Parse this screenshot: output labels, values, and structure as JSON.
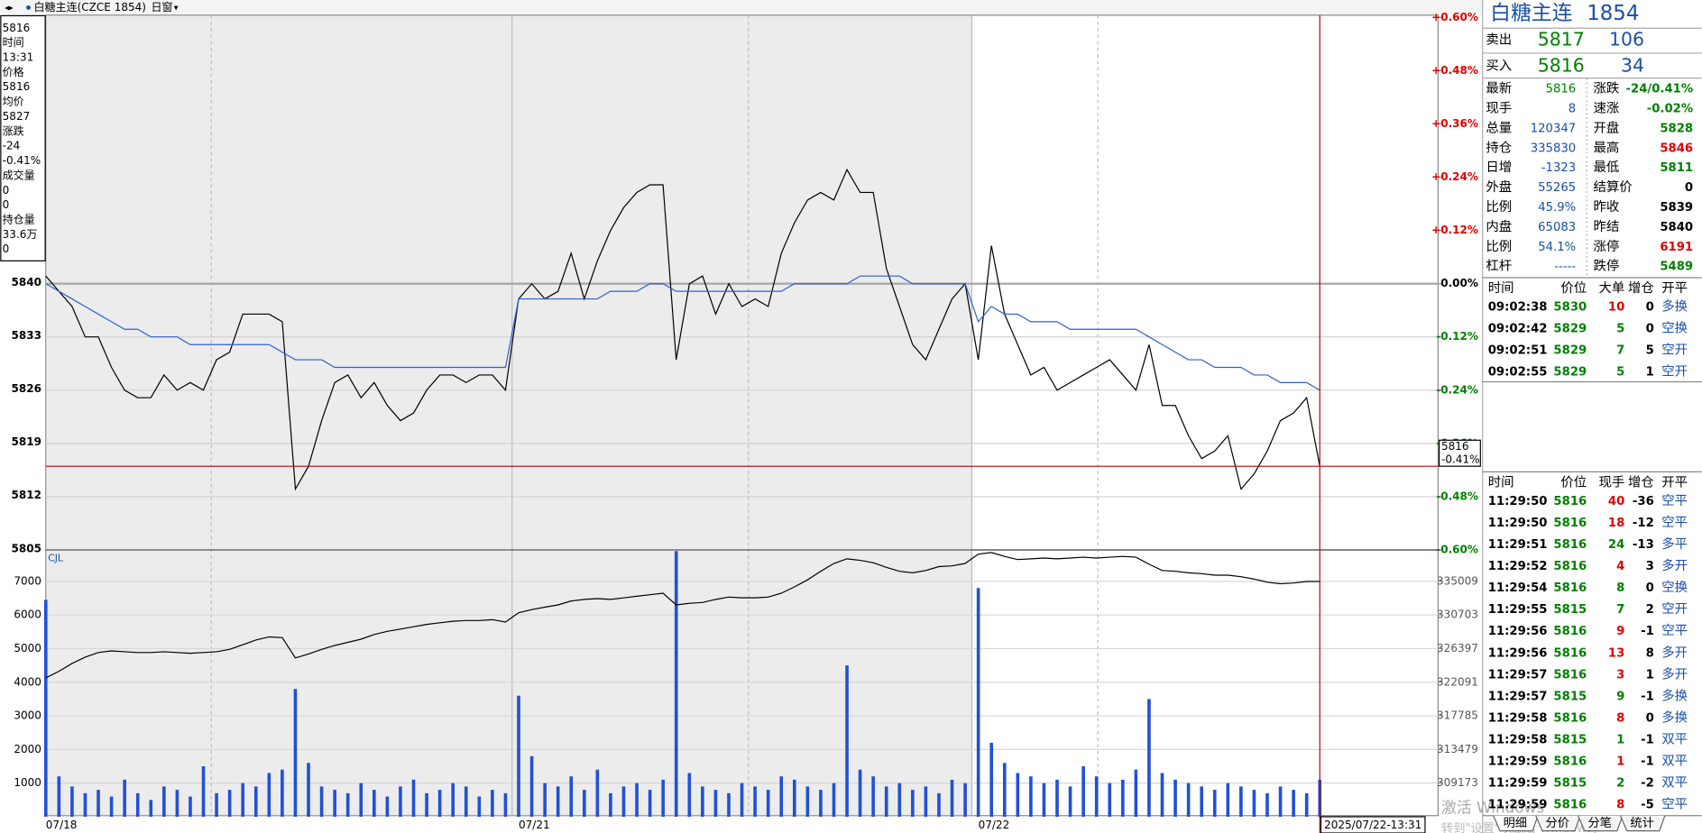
{
  "header": {
    "symbol": "白糖主连(CZCE 1854)",
    "window": "日窗"
  },
  "info_box": [
    "5816",
    "时间",
    "13:31",
    "价格",
    "5816",
    "均价",
    "5827",
    "涨跌",
    "-24",
    "-0.41%",
    "成交量",
    "0",
    "0",
    "持仓量",
    "33.6万",
    "0"
  ],
  "cursor": {
    "value": 5816,
    "label": "5816",
    "change": "-0.41%",
    "time": "2025/07/22-13:31"
  },
  "chart_data": [
    {
      "type": "line",
      "categories": [
        "07/18",
        null,
        null,
        null,
        null,
        null,
        null,
        null,
        null,
        null,
        null,
        null,
        null,
        null,
        null,
        null,
        null,
        null,
        null,
        null,
        null,
        null,
        null,
        null,
        null,
        null,
        null,
        null,
        null,
        null,
        null,
        null,
        null,
        null,
        null,
        null,
        "07/21",
        null,
        null,
        null,
        null,
        null,
        null,
        null,
        null,
        null,
        null,
        null,
        null,
        null,
        null,
        null,
        null,
        null,
        null,
        null,
        null,
        null,
        null,
        null,
        null,
        null,
        null,
        null,
        null,
        null,
        null,
        null,
        null,
        null,
        null,
        "07/22",
        null,
        null,
        null,
        null,
        null,
        null,
        null,
        null,
        null,
        null,
        null,
        null,
        null,
        null,
        null,
        null,
        null,
        null,
        null,
        null,
        null,
        null,
        null,
        null,
        null,
        null
      ],
      "series": [
        {
          "color": "#000000",
          "values": [
            5841,
            5839,
            5837,
            5833,
            5833,
            5829,
            5826,
            5825,
            5825,
            5828,
            5826,
            5827,
            5826,
            5830,
            5831,
            5836,
            5836,
            5836,
            5835,
            5813,
            5816,
            5822,
            5827,
            5828,
            5825,
            5827,
            5824,
            5822,
            5823,
            5826,
            5828,
            5828,
            5827,
            5828,
            5828,
            5826,
            5838,
            5840,
            5838,
            5839,
            5844,
            5838,
            5843,
            5847,
            5850,
            5852,
            5853,
            5853,
            5830,
            5840,
            5841,
            5836,
            5840,
            5837,
            5838,
            5837,
            5844,
            5848,
            5851,
            5852,
            5851,
            5855,
            5852,
            5852,
            5842,
            5837,
            5832,
            5830,
            5834,
            5838,
            5840,
            5830,
            5845,
            5836,
            5832,
            5828,
            5829,
            5826,
            5827,
            5828,
            5829,
            5830,
            5828,
            5826,
            5832,
            5824,
            5824,
            5820,
            5817,
            5818,
            5820,
            5813,
            5815,
            5818,
            5822,
            5823,
            5825,
            5816
          ]
        },
        {
          "color": "#2f5fd0",
          "values": [
            5840,
            5839,
            5838,
            5837,
            5836,
            5835,
            5834,
            5834,
            5833,
            5833,
            5833,
            5832,
            5832,
            5832,
            5832,
            5832,
            5832,
            5832,
            5831,
            5830,
            5830,
            5830,
            5829,
            5829,
            5829,
            5829,
            5829,
            5829,
            5829,
            5829,
            5829,
            5829,
            5829,
            5829,
            5829,
            5829,
            5838,
            5838,
            5838,
            5838,
            5838,
            5838,
            5838,
            5839,
            5839,
            5839,
            5840,
            5840,
            5839,
            5839,
            5839,
            5839,
            5839,
            5839,
            5839,
            5839,
            5839,
            5840,
            5840,
            5840,
            5840,
            5840,
            5841,
            5841,
            5841,
            5841,
            5840,
            5840,
            5840,
            5840,
            5840,
            5835,
            5837,
            5836,
            5836,
            5835,
            5835,
            5835,
            5834,
            5834,
            5834,
            5834,
            5834,
            5834,
            5833,
            5832,
            5831,
            5830,
            5830,
            5829,
            5829,
            5829,
            5828,
            5828,
            5827,
            5827,
            5827,
            5826
          ]
        }
      ],
      "ylim": [
        5805,
        5875.3
      ],
      "yticks": [
        5805,
        5812,
        5819,
        5826,
        5833,
        5840
      ],
      "y2lim": [
        -0.6,
        0.605
      ],
      "y2ticks": [
        {
          "value": 0.6,
          "label": "+0.60%"
        },
        {
          "value": 0.48,
          "label": "+0.48%"
        },
        {
          "value": 0.36,
          "label": "+0.36%"
        },
        {
          "value": 0.24,
          "label": "+0.24%"
        },
        {
          "value": 0.12,
          "label": "+0.12%"
        },
        {
          "value": 0,
          "label": "0.00%"
        },
        {
          "value": -0.12,
          "label": "-0.12%"
        },
        {
          "value": -0.24,
          "label": "-0.24%"
        },
        {
          "value": -0.36,
          "label": "-0.36%"
        },
        {
          "value": -0.48,
          "label": "-0.48%"
        },
        {
          "value": -0.6,
          "label": "-0.60%"
        }
      ],
      "grid": true
    },
    {
      "type": "bar",
      "label": "CJL",
      "series": [
        {
          "color": "#2050d8",
          "values": [
            6450,
            1200,
            900,
            700,
            800,
            600,
            1100,
            700,
            500,
            900,
            800,
            600,
            1500,
            700,
            800,
            1000,
            900,
            1300,
            1400,
            3800,
            1600,
            900,
            800,
            700,
            1000,
            800,
            600,
            900,
            1100,
            700,
            800,
            1000,
            900,
            600,
            800,
            700,
            3600,
            1800,
            1000,
            900,
            1200,
            800,
            1400,
            700,
            900,
            1000,
            800,
            1100,
            7900,
            1300,
            900,
            800,
            700,
            1000,
            900,
            800,
            1200,
            1100,
            900,
            800,
            1000,
            4500,
            1400,
            1200,
            900,
            1000,
            800,
            900,
            700,
            1100,
            1000,
            6800,
            2200,
            1600,
            1300,
            1200,
            1000,
            1100,
            900,
            1500,
            1200,
            1000,
            1100,
            1400,
            3500,
            1300,
            1100,
            1000,
            900,
            800,
            1000,
            900,
            800,
            700,
            900,
            800,
            700,
            1100
          ]
        },
        {
          "color": "#000000",
          "axis": "y2",
          "values": [
            322650,
            323500,
            324500,
            325300,
            325900,
            326100,
            326000,
            325900,
            325900,
            326000,
            325900,
            325800,
            325900,
            326000,
            326300,
            326900,
            327500,
            327900,
            327800,
            325200,
            325700,
            326300,
            326800,
            327200,
            327600,
            328200,
            328600,
            328900,
            329200,
            329500,
            329700,
            329900,
            330000,
            330000,
            330100,
            329800,
            331000,
            331400,
            331700,
            332000,
            332500,
            332700,
            332800,
            332700,
            332900,
            333100,
            333300,
            333500,
            332000,
            332200,
            332300,
            332700,
            333000,
            332900,
            332900,
            333000,
            333500,
            334300,
            335200,
            336300,
            337300,
            337900,
            337700,
            337400,
            336800,
            336300,
            336100,
            336400,
            336900,
            337000,
            337300,
            338500,
            338700,
            338200,
            337800,
            337900,
            338000,
            337900,
            338000,
            338100,
            338000,
            338100,
            338200,
            338100,
            337200,
            336400,
            336300,
            336100,
            336000,
            335800,
            335800,
            335600,
            335300,
            334900,
            334700,
            334800,
            335000,
            335000
          ]
        }
      ],
      "ylim": [
        0,
        7935
      ],
      "yticks": [
        1000,
        2000,
        3000,
        4000,
        5000,
        6000,
        7000
      ],
      "y2lim": [
        304867,
        339037
      ],
      "y2ticks": [
        309173,
        313479,
        317785,
        322091,
        326397,
        330703,
        335009
      ],
      "grid": true
    }
  ],
  "quote": {
    "name": "白糖主连",
    "code": "1854",
    "book": [
      {
        "label": "卖出",
        "price": "5817",
        "volume": "106"
      },
      {
        "label": "买入",
        "price": "5816",
        "volume": "34"
      }
    ],
    "stats": [
      [
        {
          "label": "最新",
          "value": "5816",
          "color": "#008000"
        },
        {
          "label": "涨跌",
          "value": "-24/0.41%",
          "color": "#008000"
        }
      ],
      [
        {
          "label": "现手",
          "value": "8",
          "color": "#1a4fa8"
        },
        {
          "label": "速涨",
          "value": "-0.02%",
          "color": "#008000"
        }
      ],
      [
        {
          "label": "总量",
          "value": "120347",
          "color": "#1a4fa8"
        },
        {
          "label": "开盘",
          "value": "5828",
          "color": "#008000"
        }
      ],
      [
        {
          "label": "持仓",
          "value": "335830",
          "color": "#1a4fa8"
        },
        {
          "label": "最高",
          "value": "5846",
          "color": "#e00000"
        }
      ],
      [
        {
          "label": "日增",
          "value": "-1323",
          "color": "#1a4fa8"
        },
        {
          "label": "最低",
          "value": "5811",
          "color": "#008000"
        }
      ],
      [
        {
          "label": "外盘",
          "value": "55265",
          "color": "#1a4fa8"
        },
        {
          "label": "结算价",
          "value": "0",
          "color": "#000000"
        }
      ],
      [
        {
          "label": "比例",
          "value": "45.9%",
          "color": "#1a4fa8"
        },
        {
          "label": "昨收",
          "value": "5839",
          "color": "#000000"
        }
      ],
      [
        {
          "label": "内盘",
          "value": "65083",
          "color": "#1a4fa8"
        },
        {
          "label": "昨结",
          "value": "5840",
          "color": "#000000"
        }
      ],
      [
        {
          "label": "比例",
          "value": "54.1%",
          "color": "#1a4fa8"
        },
        {
          "label": "涨停",
          "value": "6191",
          "color": "#e00000"
        }
      ],
      [
        {
          "label": "杠杆",
          "value": "-----",
          "color": "#1a4fa8"
        },
        {
          "label": "跌停",
          "value": "5489",
          "color": "#008000"
        }
      ]
    ]
  },
  "big_orders": {
    "columns": [
      "时间",
      "价位",
      "大单",
      "增仓",
      "开平"
    ],
    "rows": [
      {
        "time": "09:02:38",
        "price": "5830",
        "qty": "10",
        "oi": "0",
        "type": "多换",
        "color": "#e00000"
      },
      {
        "time": "09:02:42",
        "price": "5829",
        "qty": "5",
        "oi": "0",
        "type": "空换",
        "color": "#008000"
      },
      {
        "time": "09:02:51",
        "price": "5829",
        "qty": "7",
        "oi": "5",
        "type": "空开",
        "color": "#008000"
      },
      {
        "time": "09:02:55",
        "price": "5829",
        "qty": "5",
        "oi": "1",
        "type": "空开",
        "color": "#008000"
      }
    ]
  },
  "ticks": {
    "columns": [
      "时间",
      "价位",
      "现手",
      "增仓",
      "开平"
    ],
    "rows": [
      {
        "time": "11:29:50",
        "price": "5816",
        "qty": "40",
        "oi": "-36",
        "type": "空平",
        "color": "#e00000"
      },
      {
        "time": "11:29:50",
        "price": "5816",
        "qty": "18",
        "oi": "-12",
        "type": "空平",
        "color": "#e00000"
      },
      {
        "time": "11:29:51",
        "price": "5816",
        "qty": "24",
        "oi": "-13",
        "type": "多平",
        "color": "#008000"
      },
      {
        "time": "11:29:52",
        "price": "5816",
        "qty": "4",
        "oi": "3",
        "type": "多开",
        "color": "#e00000"
      },
      {
        "time": "11:29:54",
        "price": "5816",
        "qty": "8",
        "oi": "0",
        "type": "空换",
        "color": "#008000"
      },
      {
        "time": "11:29:55",
        "price": "5815",
        "qty": "7",
        "oi": "2",
        "type": "空开",
        "color": "#008000"
      },
      {
        "time": "11:29:56",
        "price": "5816",
        "qty": "9",
        "oi": "-1",
        "type": "空平",
        "color": "#e00000"
      },
      {
        "time": "11:29:56",
        "price": "5816",
        "qty": "13",
        "oi": "8",
        "type": "多开",
        "color": "#e00000"
      },
      {
        "time": "11:29:57",
        "price": "5816",
        "qty": "3",
        "oi": "1",
        "type": "多开",
        "color": "#e00000"
      },
      {
        "time": "11:29:57",
        "price": "5815",
        "qty": "9",
        "oi": "-1",
        "type": "多换",
        "color": "#008000"
      },
      {
        "time": "11:29:58",
        "price": "5816",
        "qty": "8",
        "oi": "0",
        "type": "多换",
        "color": "#e00000"
      },
      {
        "time": "11:29:58",
        "price": "5815",
        "qty": "1",
        "oi": "-1",
        "type": "双平",
        "color": "#008000"
      },
      {
        "time": "11:29:59",
        "price": "5816",
        "qty": "1",
        "oi": "-1",
        "type": "双平",
        "color": "#e00000"
      },
      {
        "time": "11:29:59",
        "price": "5815",
        "qty": "2",
        "oi": "-2",
        "type": "双平",
        "color": "#008000"
      },
      {
        "time": "11:29:59",
        "price": "5816",
        "qty": "8",
        "oi": "-5",
        "type": "空平",
        "color": "#e00000"
      }
    ]
  },
  "tabs": [
    "明细",
    "分价",
    "分笔",
    "统计"
  ],
  "watermark": {
    "line1": "激活 Windows",
    "line2": "转到\"设置\"以激活 Windows。"
  }
}
